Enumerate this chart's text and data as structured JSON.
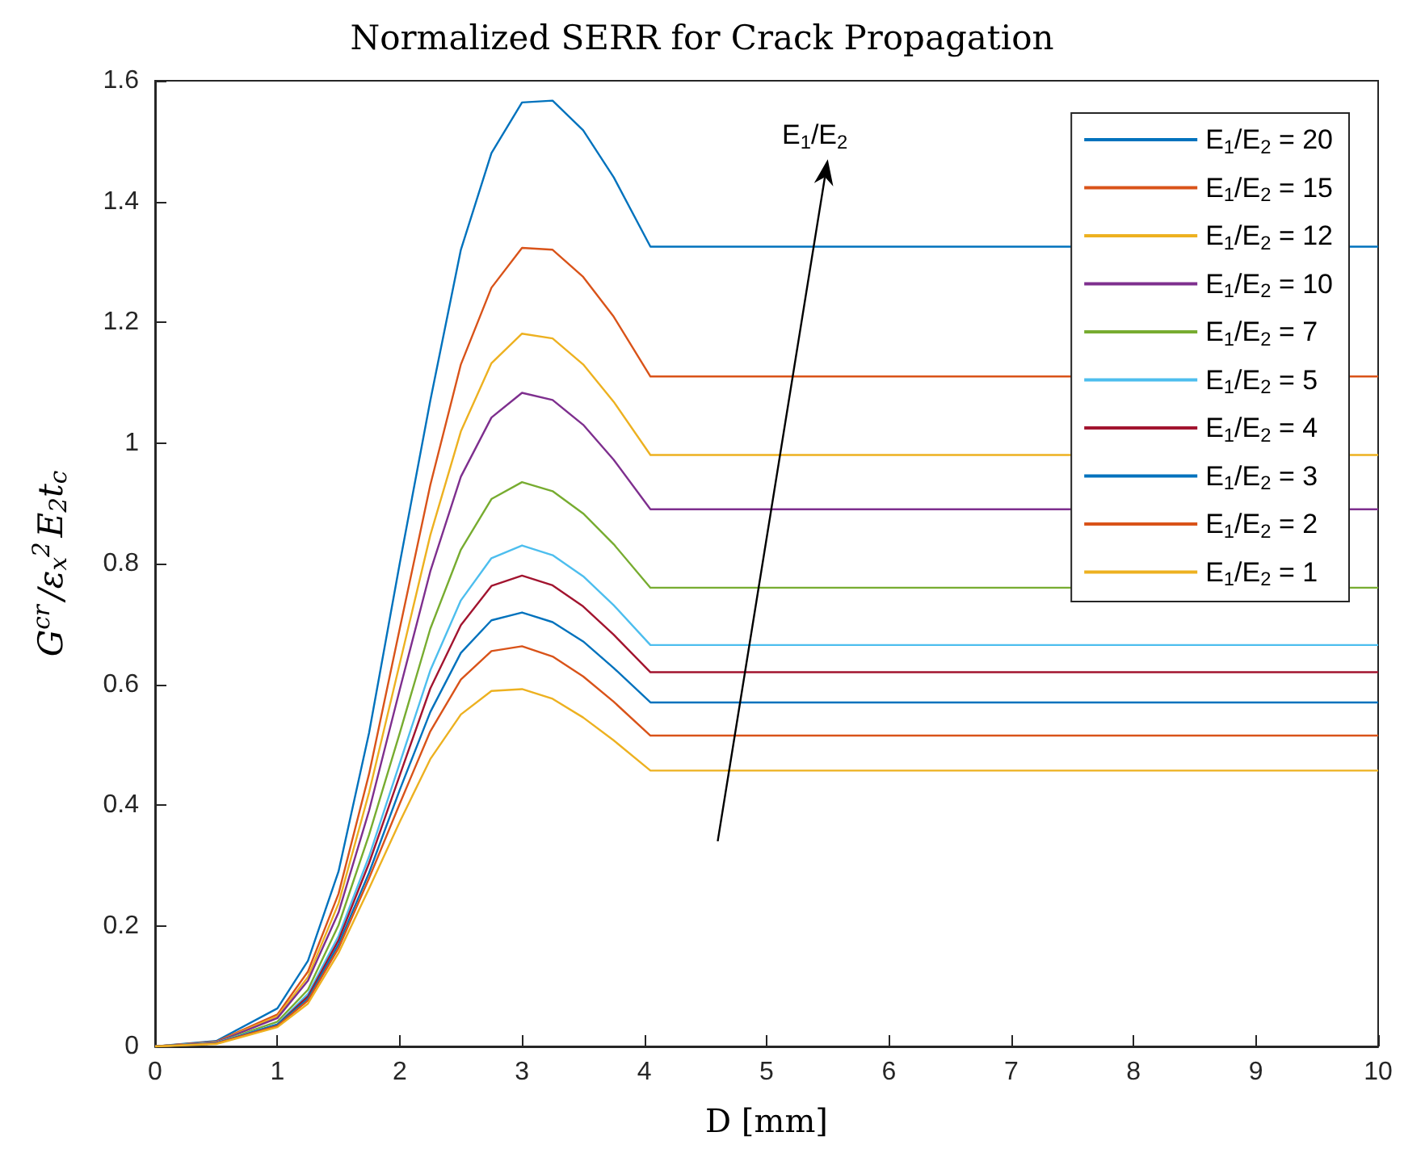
{
  "chart_data": {
    "type": "line",
    "title": "Normalized SERR for Crack Propagation",
    "xlabel": "D [mm]",
    "ylabel": "G$^{cr}$/ε$_{x}$$^{2}$E$_{2}$t$_{c}$",
    "x": [
      0,
      0.5,
      1,
      1.25,
      1.5,
      1.75,
      2,
      2.25,
      2.5,
      2.75,
      3,
      3.25,
      3.5,
      3.75,
      4.05,
      10
    ],
    "series": [
      {
        "name": "E$_{1}$/E$_{2}$ = 20",
        "color": "#0072bd",
        "values": [
          0,
          0.009,
          0.063,
          0.142,
          0.29,
          0.52,
          0.8,
          1.07,
          1.32,
          1.48,
          1.564,
          1.567,
          1.518,
          1.44,
          1.325,
          1.325
        ]
      },
      {
        "name": "E$_{1}$/E$_{2}$ = 15",
        "color": "#d95319",
        "values": [
          0,
          0.008,
          0.053,
          0.124,
          0.253,
          0.452,
          0.692,
          0.93,
          1.13,
          1.257,
          1.323,
          1.32,
          1.275,
          1.209,
          1.11,
          1.11
        ]
      },
      {
        "name": "E$_{1}$/E$_{2}$ = 12",
        "color": "#edb120",
        "values": [
          0,
          0.007,
          0.05,
          0.115,
          0.237,
          0.421,
          0.634,
          0.847,
          1.019,
          1.132,
          1.181,
          1.173,
          1.13,
          1.068,
          0.98,
          0.98
        ]
      },
      {
        "name": "E$_{1}$/E$_{2}$ = 10",
        "color": "#7e2f8e",
        "values": [
          0,
          0.007,
          0.047,
          0.109,
          0.222,
          0.391,
          0.591,
          0.787,
          0.944,
          1.042,
          1.083,
          1.071,
          1.03,
          0.972,
          0.89,
          0.89
        ]
      },
      {
        "name": "E$_{1}$/E$_{2}$ = 7",
        "color": "#77ac30",
        "values": [
          0,
          0.006,
          0.041,
          0.094,
          0.201,
          0.351,
          0.519,
          0.692,
          0.823,
          0.907,
          0.935,
          0.92,
          0.883,
          0.832,
          0.76,
          0.76
        ]
      },
      {
        "name": "E$_{1}$/E$_{2}$ = 5",
        "color": "#4dbeee",
        "values": [
          0,
          0.006,
          0.037,
          0.087,
          0.183,
          0.315,
          0.469,
          0.623,
          0.739,
          0.809,
          0.83,
          0.814,
          0.779,
          0.731,
          0.665,
          0.665
        ]
      },
      {
        "name": "E$_{1}$/E$_{2}$ = 4",
        "color": "#a2142f",
        "values": [
          0,
          0.005,
          0.036,
          0.083,
          0.176,
          0.304,
          0.449,
          0.593,
          0.698,
          0.763,
          0.78,
          0.764,
          0.729,
          0.682,
          0.62,
          0.62
        ]
      },
      {
        "name": "E$_{1}$/E$_{2}$ = 3",
        "color": "#0072bd",
        "values": [
          0,
          0.005,
          0.036,
          0.079,
          0.169,
          0.288,
          0.425,
          0.554,
          0.652,
          0.706,
          0.719,
          0.703,
          0.671,
          0.627,
          0.57,
          0.57
        ]
      },
      {
        "name": "E$_{1}$/E$_{2}$ = 2",
        "color": "#d95319",
        "values": [
          0,
          0.005,
          0.034,
          0.076,
          0.163,
          0.279,
          0.402,
          0.522,
          0.608,
          0.655,
          0.663,
          0.646,
          0.613,
          0.571,
          0.515,
          0.515
        ]
      },
      {
        "name": "E$_{1}$/E$_{2}$ = 1",
        "color": "#edb120",
        "values": [
          0,
          0.004,
          0.032,
          0.071,
          0.155,
          0.262,
          0.372,
          0.476,
          0.55,
          0.589,
          0.592,
          0.576,
          0.545,
          0.507,
          0.457,
          0.457
        ]
      }
    ],
    "annotations": [
      "E$_{1}$/E$_{2}$"
    ],
    "xlim": [
      0,
      10
    ],
    "xticks": [
      0,
      1,
      2,
      3,
      4,
      5,
      6,
      7,
      8,
      9,
      10
    ],
    "ylim": [
      0,
      1.6
    ],
    "yticks": [
      0,
      0.2,
      0.4,
      0.6,
      0.8,
      1,
      1.2,
      1.4,
      1.6
    ],
    "grid": false,
    "legend": "top right",
    "marker": "none",
    "line_style": "solid"
  }
}
